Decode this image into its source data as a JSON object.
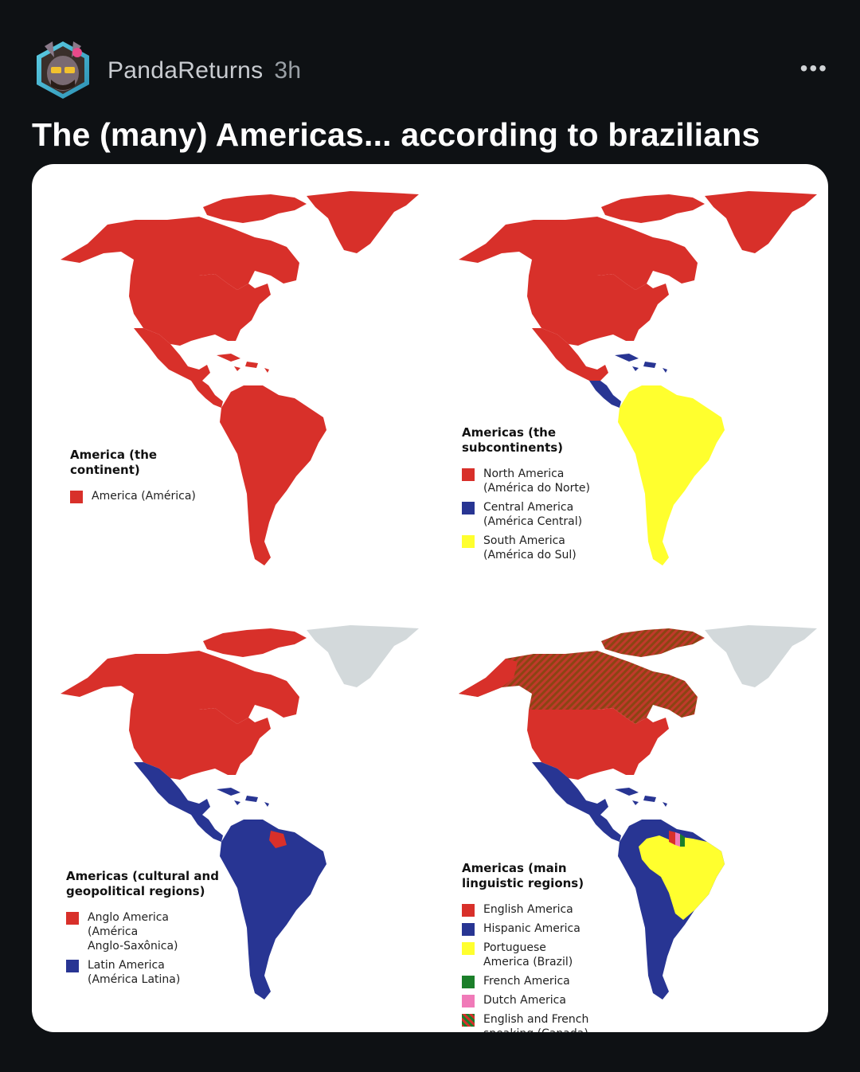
{
  "post": {
    "username": "PandaReturns",
    "time": "3h",
    "more_label": "•••",
    "title": "The (many) Americas... according to brazilians"
  },
  "colors": {
    "background": "#0e1114",
    "red": "#d8302a",
    "blue": "#283593",
    "yellow": "#ffff2e",
    "grey": "#d3d9db",
    "brown": "#8b4513",
    "green": "#1b7f2a",
    "pink": "#f07ab8"
  },
  "maps": [
    {
      "legend_title": "America (the\ncontinent)",
      "items": [
        {
          "label": "America (América)",
          "color": "#d8302a"
        }
      ]
    },
    {
      "legend_title": "Americas (the\nsubcontinents)",
      "items": [
        {
          "label": "North America\n(América do Norte)",
          "color": "#d8302a"
        },
        {
          "label": "Central America\n(América Central)",
          "color": "#283593"
        },
        {
          "label": "South America\n(América do Sul)",
          "color": "#ffff2e"
        }
      ]
    },
    {
      "legend_title": "Americas (cultural and\ngeopolitical regions)",
      "items": [
        {
          "label": "Anglo America\n(América\nAnglo-Saxônica)",
          "color": "#d8302a"
        },
        {
          "label": "Latin America\n(América Latina)",
          "color": "#283593"
        }
      ]
    },
    {
      "legend_title": "Americas (main\nlinguistic regions)",
      "items": [
        {
          "label": "English America",
          "color": "#d8302a"
        },
        {
          "label": "Hispanic America",
          "color": "#283593"
        },
        {
          "label": "Portuguese\nAmerica (Brazil)",
          "color": "#ffff2e"
        },
        {
          "label": "French America",
          "color": "#1b7f2a"
        },
        {
          "label": "Dutch America",
          "color": "#f07ab8"
        },
        {
          "label": "English and French\nspeaking (Canada)",
          "color": "hatch"
        }
      ]
    }
  ]
}
